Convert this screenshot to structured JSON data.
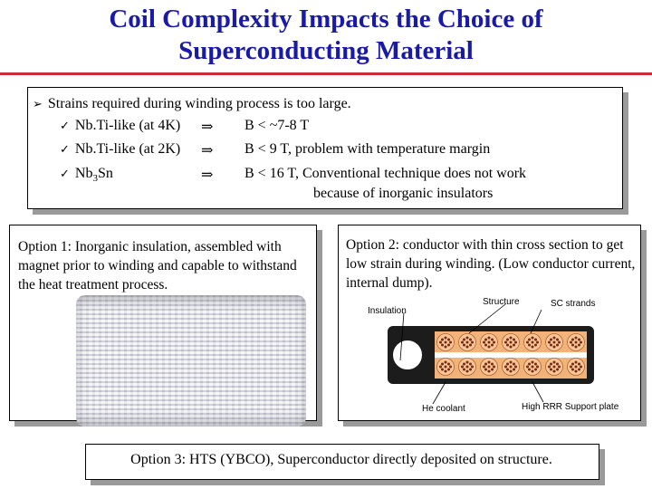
{
  "title": {
    "line1": "Coil Complexity Impacts the Choice of",
    "line2": "Superconducting Material"
  },
  "strains": {
    "heading": "Strains required during winding process is too large.",
    "rows": [
      {
        "material": "Nb.Ti-like (at 4K)",
        "implies": "⇒",
        "condition": "B < ~7-8 T"
      },
      {
        "material": "Nb.Ti-like (at 2K)",
        "implies": "⇒",
        "condition": "B < 9  T, problem with temperature margin"
      },
      {
        "material_base": "Nb",
        "material_sub": "3",
        "material_tail": "Sn",
        "implies": "⇒",
        "condition": "B < 16 T, Conventional technique does not work"
      }
    ],
    "continuation": "because of inorganic insulators"
  },
  "option1": {
    "text": "Option 1: Inorganic insulation, assembled with magnet prior to winding and capable to withstand the heat treatment process."
  },
  "option2": {
    "text": "Option 2: conductor with thin cross section to get low strain during winding.  (Low conductor current, internal dump).",
    "diagram": {
      "insulation": "Insulation",
      "structure": "Structure",
      "sc_strands": "SC strands",
      "he_coolant": "He coolant",
      "support_plate": "High RRR Support plate"
    }
  },
  "option3": {
    "text": "Option 3: HTS (YBCO), Superconductor directly deposited on structure."
  },
  "colors": {
    "title": "#1a1aa8",
    "rule": "#cc2b35",
    "shadow": "#9a9a9a",
    "conductor_dark": "#1c1c1c",
    "strand_fill": "#f2b37b",
    "strand_dot": "#7a2a0e"
  }
}
